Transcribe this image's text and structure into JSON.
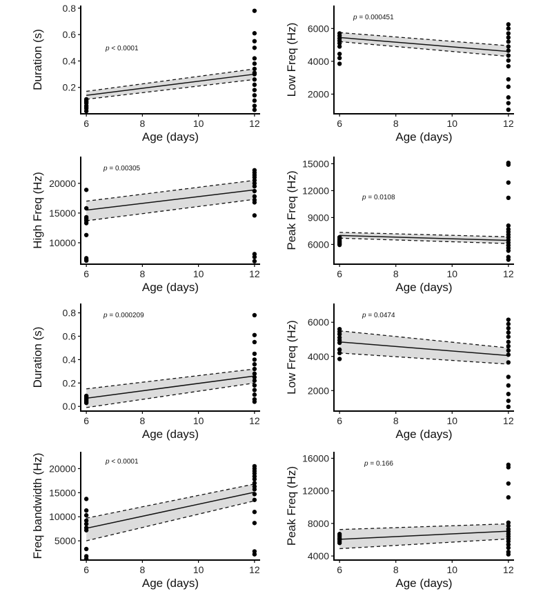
{
  "chart_data": [
    {
      "type": "scatter",
      "ylabel": "Duration (s)",
      "xlabel": "Age (days)",
      "p_prefix": "p",
      "p_value": "< 0.0001",
      "xticks": [
        6,
        8,
        10,
        12
      ],
      "yticks": [
        0.2,
        0.4,
        0.6,
        0.8
      ],
      "ytick_labels": [
        "0.2",
        "0.4",
        "0.6",
        "0.8"
      ],
      "xlim": [
        5.8,
        12.2
      ],
      "ylim": [
        0.0,
        0.82
      ],
      "fit": {
        "x": [
          6,
          12
        ],
        "y": [
          0.14,
          0.3
        ]
      },
      "ci_low": [
        0.11,
        0.26
      ],
      "ci_high": [
        0.17,
        0.34
      ],
      "points": [
        [
          6,
          0.02
        ],
        [
          6,
          0.04
        ],
        [
          6,
          0.05
        ],
        [
          6,
          0.06
        ],
        [
          6,
          0.08
        ],
        [
          6,
          0.09
        ],
        [
          6,
          0.1
        ],
        [
          6,
          0.11
        ],
        [
          12,
          0.78
        ],
        [
          12,
          0.61
        ],
        [
          12,
          0.55
        ],
        [
          12,
          0.5
        ],
        [
          12,
          0.42
        ],
        [
          12,
          0.38
        ],
        [
          12,
          0.34
        ],
        [
          12,
          0.31
        ],
        [
          12,
          0.3
        ],
        [
          12,
          0.26
        ],
        [
          12,
          0.22
        ],
        [
          12,
          0.18
        ],
        [
          12,
          0.14
        ],
        [
          12,
          0.1
        ],
        [
          12,
          0.06
        ],
        [
          12,
          0.03
        ]
      ]
    },
    {
      "type": "scatter",
      "ylabel": "Low Freq (Hz)",
      "xlabel": "Age (days)",
      "p_prefix": "p",
      "p_value": "= 0.000451",
      "xticks": [
        6,
        8,
        10,
        12
      ],
      "yticks": [
        2000,
        4000,
        6000
      ],
      "ytick_labels": [
        "2000",
        "4000",
        "6000"
      ],
      "xlim": [
        5.8,
        12.2
      ],
      "ylim": [
        800,
        7400
      ],
      "fit": {
        "x": [
          6,
          12
        ],
        "y": [
          5450,
          4600
        ]
      },
      "ci_low": [
        5200,
        4300
      ],
      "ci_high": [
        5750,
        4950
      ],
      "points": [
        [
          6,
          5700
        ],
        [
          6,
          5550
        ],
        [
          6,
          5400
        ],
        [
          6,
          5250
        ],
        [
          6,
          5100
        ],
        [
          6,
          4900
        ],
        [
          6,
          4450
        ],
        [
          6,
          4200
        ],
        [
          6,
          3850
        ],
        [
          12,
          6250
        ],
        [
          12,
          6000
        ],
        [
          12,
          5700
        ],
        [
          12,
          5450
        ],
        [
          12,
          5200
        ],
        [
          12,
          4900
        ],
        [
          12,
          4650
        ],
        [
          12,
          4350
        ],
        [
          12,
          4050
        ],
        [
          12,
          3700
        ],
        [
          12,
          2900
        ],
        [
          12,
          2450
        ],
        [
          12,
          1800
        ],
        [
          12,
          1450
        ],
        [
          12,
          1050
        ]
      ]
    },
    {
      "type": "scatter",
      "ylabel": "High Freq (Hz)",
      "xlabel": "Age (days)",
      "p_prefix": "p",
      "p_value": "= 0.00305",
      "xticks": [
        6,
        8,
        10,
        12
      ],
      "yticks": [
        10000,
        15000,
        20000
      ],
      "ytick_labels": [
        "10000",
        "15000",
        "20000"
      ],
      "xlim": [
        5.8,
        12.2
      ],
      "ylim": [
        6400,
        24500
      ],
      "fit": {
        "x": [
          6,
          12
        ],
        "y": [
          15500,
          18900
        ]
      },
      "ci_low": [
        13700,
        17300
      ],
      "ci_high": [
        17000,
        20500
      ],
      "points": [
        [
          6,
          18900
        ],
        [
          6,
          15800
        ],
        [
          6,
          14300
        ],
        [
          6,
          14000
        ],
        [
          6,
          13700
        ],
        [
          6,
          13300
        ],
        [
          6,
          11300
        ],
        [
          6,
          7400
        ],
        [
          6,
          7100
        ],
        [
          6,
          7000
        ],
        [
          12,
          22200
        ],
        [
          12,
          21800
        ],
        [
          12,
          21400
        ],
        [
          12,
          21000
        ],
        [
          12,
          20500
        ],
        [
          12,
          20000
        ],
        [
          12,
          19500
        ],
        [
          12,
          18700
        ],
        [
          12,
          17800
        ],
        [
          12,
          17200
        ],
        [
          12,
          16800
        ],
        [
          12,
          14600
        ],
        [
          12,
          8100
        ],
        [
          12,
          7600
        ],
        [
          12,
          6900
        ]
      ]
    },
    {
      "type": "scatter",
      "ylabel": "Peak Freq (Hz)",
      "xlabel": "Age (days)",
      "p_prefix": "p",
      "p_value": "= 0.0108",
      "xticks": [
        6,
        8,
        10,
        12
      ],
      "yticks": [
        6000,
        9000,
        12000,
        15000
      ],
      "ytick_labels": [
        "6000",
        "9000",
        "12000",
        "15000"
      ],
      "xlim": [
        5.8,
        12.2
      ],
      "ylim": [
        3800,
        15800
      ],
      "fit": {
        "x": [
          6,
          12
        ],
        "y": [
          7000,
          6450
        ]
      },
      "ci_low": [
        6700,
        6100
      ],
      "ci_high": [
        7350,
        6850
      ],
      "points": [
        [
          6,
          6800
        ],
        [
          6,
          6600
        ],
        [
          6,
          6400
        ],
        [
          6,
          6250
        ],
        [
          6,
          6100
        ],
        [
          6,
          5950
        ],
        [
          12,
          15100
        ],
        [
          12,
          14900
        ],
        [
          12,
          12900
        ],
        [
          12,
          11200
        ],
        [
          12,
          8100
        ],
        [
          12,
          7700
        ],
        [
          12,
          7400
        ],
        [
          12,
          7100
        ],
        [
          12,
          6800
        ],
        [
          12,
          6500
        ],
        [
          12,
          6200
        ],
        [
          12,
          5900
        ],
        [
          12,
          5600
        ],
        [
          12,
          5300
        ],
        [
          12,
          4600
        ],
        [
          12,
          4300
        ]
      ]
    },
    {
      "type": "scatter",
      "ylabel": "Duration (s)",
      "xlabel": "Age (days)",
      "p_prefix": "p",
      "p_value": "= 0.000209",
      "xticks": [
        6,
        8,
        10,
        12
      ],
      "yticks": [
        0.0,
        0.2,
        0.4,
        0.6,
        0.8
      ],
      "ytick_labels": [
        "0.0",
        "0.2",
        "0.4",
        "0.6",
        "0.8"
      ],
      "xlim": [
        5.8,
        12.2
      ],
      "ylim": [
        -0.04,
        0.88
      ],
      "fit": {
        "x": [
          6,
          12
        ],
        "y": [
          0.07,
          0.26
        ]
      },
      "ci_low": [
        -0.01,
        0.2
      ],
      "ci_high": [
        0.15,
        0.32
      ],
      "points": [
        [
          6,
          0.03
        ],
        [
          6,
          0.04
        ],
        [
          6,
          0.05
        ],
        [
          6,
          0.06
        ],
        [
          6,
          0.07
        ],
        [
          6,
          0.08
        ],
        [
          6,
          0.09
        ],
        [
          12,
          0.78
        ],
        [
          12,
          0.61
        ],
        [
          12,
          0.55
        ],
        [
          12,
          0.45
        ],
        [
          12,
          0.4
        ],
        [
          12,
          0.36
        ],
        [
          12,
          0.32
        ],
        [
          12,
          0.28
        ],
        [
          12,
          0.25
        ],
        [
          12,
          0.22
        ],
        [
          12,
          0.18
        ],
        [
          12,
          0.14
        ],
        [
          12,
          0.1
        ],
        [
          12,
          0.06
        ],
        [
          12,
          0.04
        ]
      ]
    },
    {
      "type": "scatter",
      "ylabel": "Low Freq (Hz)",
      "xlabel": "Age (days)",
      "p_prefix": "p",
      "p_value": "= 0.0474",
      "xticks": [
        6,
        8,
        10,
        12
      ],
      "yticks": [
        2000,
        4000,
        6000
      ],
      "ytick_labels": [
        "2000",
        "4000",
        "6000"
      ],
      "xlim": [
        5.8,
        12.2
      ],
      "ylim": [
        800,
        7100
      ],
      "fit": {
        "x": [
          6,
          12
        ],
        "y": [
          4850,
          4050
        ]
      },
      "ci_low": [
        4200,
        3550
      ],
      "ci_high": [
        5500,
        4500
      ],
      "points": [
        [
          6,
          5600
        ],
        [
          6,
          5450
        ],
        [
          6,
          5300
        ],
        [
          6,
          5100
        ],
        [
          6,
          4950
        ],
        [
          6,
          4800
        ],
        [
          6,
          4400
        ],
        [
          6,
          4200
        ],
        [
          6,
          3850
        ],
        [
          12,
          6150
        ],
        [
          12,
          5900
        ],
        [
          12,
          5650
        ],
        [
          12,
          5400
        ],
        [
          12,
          5150
        ],
        [
          12,
          4850
        ],
        [
          12,
          4600
        ],
        [
          12,
          4350
        ],
        [
          12,
          4100
        ],
        [
          12,
          3650
        ],
        [
          12,
          2800
        ],
        [
          12,
          2300
        ],
        [
          12,
          1800
        ],
        [
          12,
          1400
        ],
        [
          12,
          1050
        ]
      ]
    },
    {
      "type": "scatter",
      "ylabel": "Freq bandwidth (Hz)",
      "xlabel": "Age (days)",
      "p_prefix": "p",
      "p_value": "< 0.0001",
      "xticks": [
        6,
        8,
        10,
        12
      ],
      "yticks": [
        5000,
        10000,
        15000,
        20000
      ],
      "ytick_labels": [
        "5000",
        "10000",
        "15000",
        "20000"
      ],
      "xlim": [
        5.8,
        12.2
      ],
      "ylim": [
        1000,
        23500
      ],
      "fit": {
        "x": [
          6,
          12
        ],
        "y": [
          7600,
          15100
        ]
      },
      "ci_low": [
        5000,
        13300
      ],
      "ci_high": [
        9700,
        16800
      ],
      "points": [
        [
          6,
          13700
        ],
        [
          6,
          11300
        ],
        [
          6,
          10300
        ],
        [
          6,
          9200
        ],
        [
          6,
          8500
        ],
        [
          6,
          7700
        ],
        [
          6,
          7200
        ],
        [
          6,
          3300
        ],
        [
          6,
          1800
        ],
        [
          6,
          1300
        ],
        [
          12,
          20500
        ],
        [
          12,
          20000
        ],
        [
          12,
          19500
        ],
        [
          12,
          19000
        ],
        [
          12,
          18400
        ],
        [
          12,
          17800
        ],
        [
          12,
          17000
        ],
        [
          12,
          16300
        ],
        [
          12,
          15700
        ],
        [
          12,
          14700
        ],
        [
          12,
          13500
        ],
        [
          12,
          11000
        ],
        [
          12,
          8700
        ],
        [
          12,
          2800
        ],
        [
          12,
          2200
        ]
      ]
    },
    {
      "type": "scatter",
      "ylabel": "Peak Freq (Hz)",
      "xlabel": "Age (days)",
      "p_prefix": "p",
      "p_value": "= 0.166",
      "xticks": [
        6,
        8,
        10,
        12
      ],
      "yticks": [
        4000,
        8000,
        12000,
        16000
      ],
      "ytick_labels": [
        "4000",
        "8000",
        "12000",
        "16000"
      ],
      "xlim": [
        5.8,
        12.2
      ],
      "ylim": [
        3500,
        16800
      ],
      "fit": {
        "x": [
          6,
          12
        ],
        "y": [
          6050,
          7050
        ]
      },
      "ci_low": [
        4900,
        6100
      ],
      "ci_high": [
        7250,
        7950
      ],
      "points": [
        [
          6,
          6700
        ],
        [
          6,
          6450
        ],
        [
          6,
          6200
        ],
        [
          6,
          6000
        ],
        [
          6,
          5800
        ],
        [
          6,
          5600
        ],
        [
          12,
          15200
        ],
        [
          12,
          14900
        ],
        [
          12,
          12900
        ],
        [
          12,
          11200
        ],
        [
          12,
          8100
        ],
        [
          12,
          7700
        ],
        [
          12,
          7300
        ],
        [
          12,
          7000
        ],
        [
          12,
          6700
        ],
        [
          12,
          6400
        ],
        [
          12,
          6100
        ],
        [
          12,
          5800
        ],
        [
          12,
          5400
        ],
        [
          12,
          5000
        ],
        [
          12,
          4500
        ],
        [
          12,
          4200
        ]
      ]
    }
  ]
}
